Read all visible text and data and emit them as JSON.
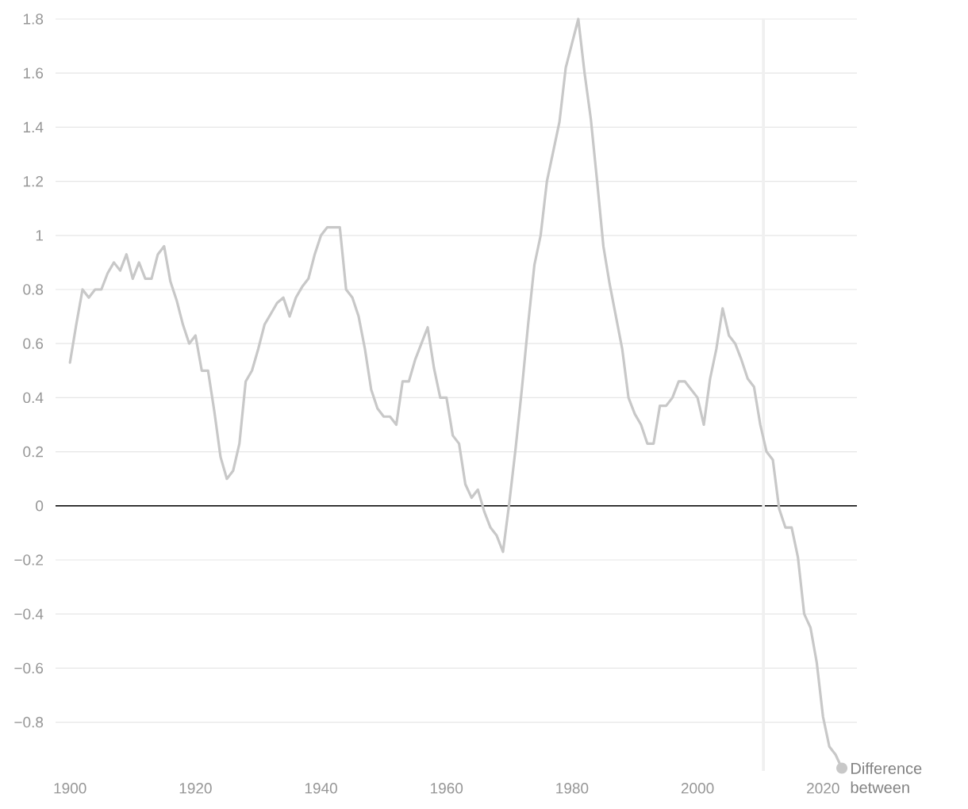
{
  "chart_data": {
    "type": "line",
    "x": [
      1900,
      1901,
      1902,
      1903,
      1904,
      1905,
      1906,
      1907,
      1908,
      1909,
      1910,
      1911,
      1912,
      1913,
      1914,
      1915,
      1916,
      1917,
      1918,
      1919,
      1920,
      1921,
      1922,
      1923,
      1924,
      1925,
      1926,
      1927,
      1928,
      1929,
      1930,
      1931,
      1932,
      1933,
      1934,
      1935,
      1936,
      1937,
      1938,
      1939,
      1940,
      1941,
      1942,
      1943,
      1944,
      1945,
      1946,
      1947,
      1948,
      1949,
      1950,
      1951,
      1952,
      1953,
      1954,
      1955,
      1956,
      1957,
      1958,
      1959,
      1960,
      1961,
      1962,
      1963,
      1964,
      1965,
      1966,
      1967,
      1968,
      1969,
      1970,
      1971,
      1972,
      1973,
      1974,
      1975,
      1976,
      1977,
      1978,
      1979,
      1980,
      1981,
      1982,
      1983,
      1984,
      1985,
      1986,
      1987,
      1988,
      1989,
      1990,
      1991,
      1992,
      1993,
      1994,
      1995,
      1996,
      1997,
      1998,
      1999,
      2000,
      2001,
      2002,
      2003,
      2004,
      2005,
      2006,
      2007,
      2008,
      2009,
      2010,
      2011,
      2012,
      2013,
      2014,
      2015,
      2016,
      2017,
      2018,
      2019,
      2020,
      2021,
      2022,
      2023
    ],
    "series": [
      {
        "name": "Difference between",
        "color": "#c8c8c8",
        "values": [
          0.53,
          0.67,
          0.8,
          0.77,
          0.8,
          0.8,
          0.86,
          0.9,
          0.87,
          0.93,
          0.84,
          0.9,
          0.84,
          0.84,
          0.93,
          0.96,
          0.83,
          0.76,
          0.67,
          0.6,
          0.63,
          0.5,
          0.5,
          0.35,
          0.18,
          0.1,
          0.13,
          0.23,
          0.46,
          0.5,
          0.58,
          0.67,
          0.71,
          0.75,
          0.77,
          0.7,
          0.77,
          0.81,
          0.84,
          0.93,
          1.0,
          1.03,
          1.03,
          1.03,
          0.8,
          0.77,
          0.7,
          0.58,
          0.43,
          0.36,
          0.33,
          0.33,
          0.3,
          0.46,
          0.46,
          0.54,
          0.6,
          0.66,
          0.51,
          0.4,
          0.4,
          0.26,
          0.23,
          0.08,
          0.03,
          0.06,
          -0.02,
          -0.08,
          -0.11,
          -0.17,
          0.01,
          0.21,
          0.43,
          0.67,
          0.89,
          1.0,
          1.2,
          1.31,
          1.42,
          1.62,
          1.71,
          1.8,
          1.6,
          1.43,
          1.2,
          0.96,
          0.82,
          0.7,
          0.58,
          0.4,
          0.34,
          0.3,
          0.23,
          0.23,
          0.37,
          0.37,
          0.4,
          0.46,
          0.46,
          0.43,
          0.4,
          0.3,
          0.47,
          0.58,
          0.73,
          0.63,
          0.6,
          0.54,
          0.47,
          0.44,
          0.3,
          0.2,
          0.17,
          -0.01,
          -0.08,
          -0.08,
          -0.19,
          -0.4,
          -0.45,
          -0.58,
          -0.78,
          -0.89,
          -0.92,
          -0.97
        ]
      }
    ],
    "xlim": [
      1897.7,
      2025.4
    ],
    "ylim": [
      -0.98,
      1.8
    ],
    "xticks": [
      1900,
      1920,
      1940,
      1960,
      1980,
      2000,
      2020
    ],
    "yticks": [
      {
        "value": -0.8,
        "label": "−0.8"
      },
      {
        "value": -0.6,
        "label": "−0.6"
      },
      {
        "value": -0.4,
        "label": "−0.4"
      },
      {
        "value": -0.2,
        "label": "−0.2"
      },
      0,
      0.2,
      0.4,
      0.6,
      0.8,
      1,
      1.2,
      1.4,
      1.6,
      1.8
    ],
    "ref_lines": [
      {
        "axis": "y",
        "value": 0,
        "color": "#000000"
      },
      {
        "axis": "x",
        "value": 2010.5,
        "color": "#f0f0f0"
      }
    ],
    "grid": "y",
    "marker": "none",
    "line_style": "solid"
  }
}
